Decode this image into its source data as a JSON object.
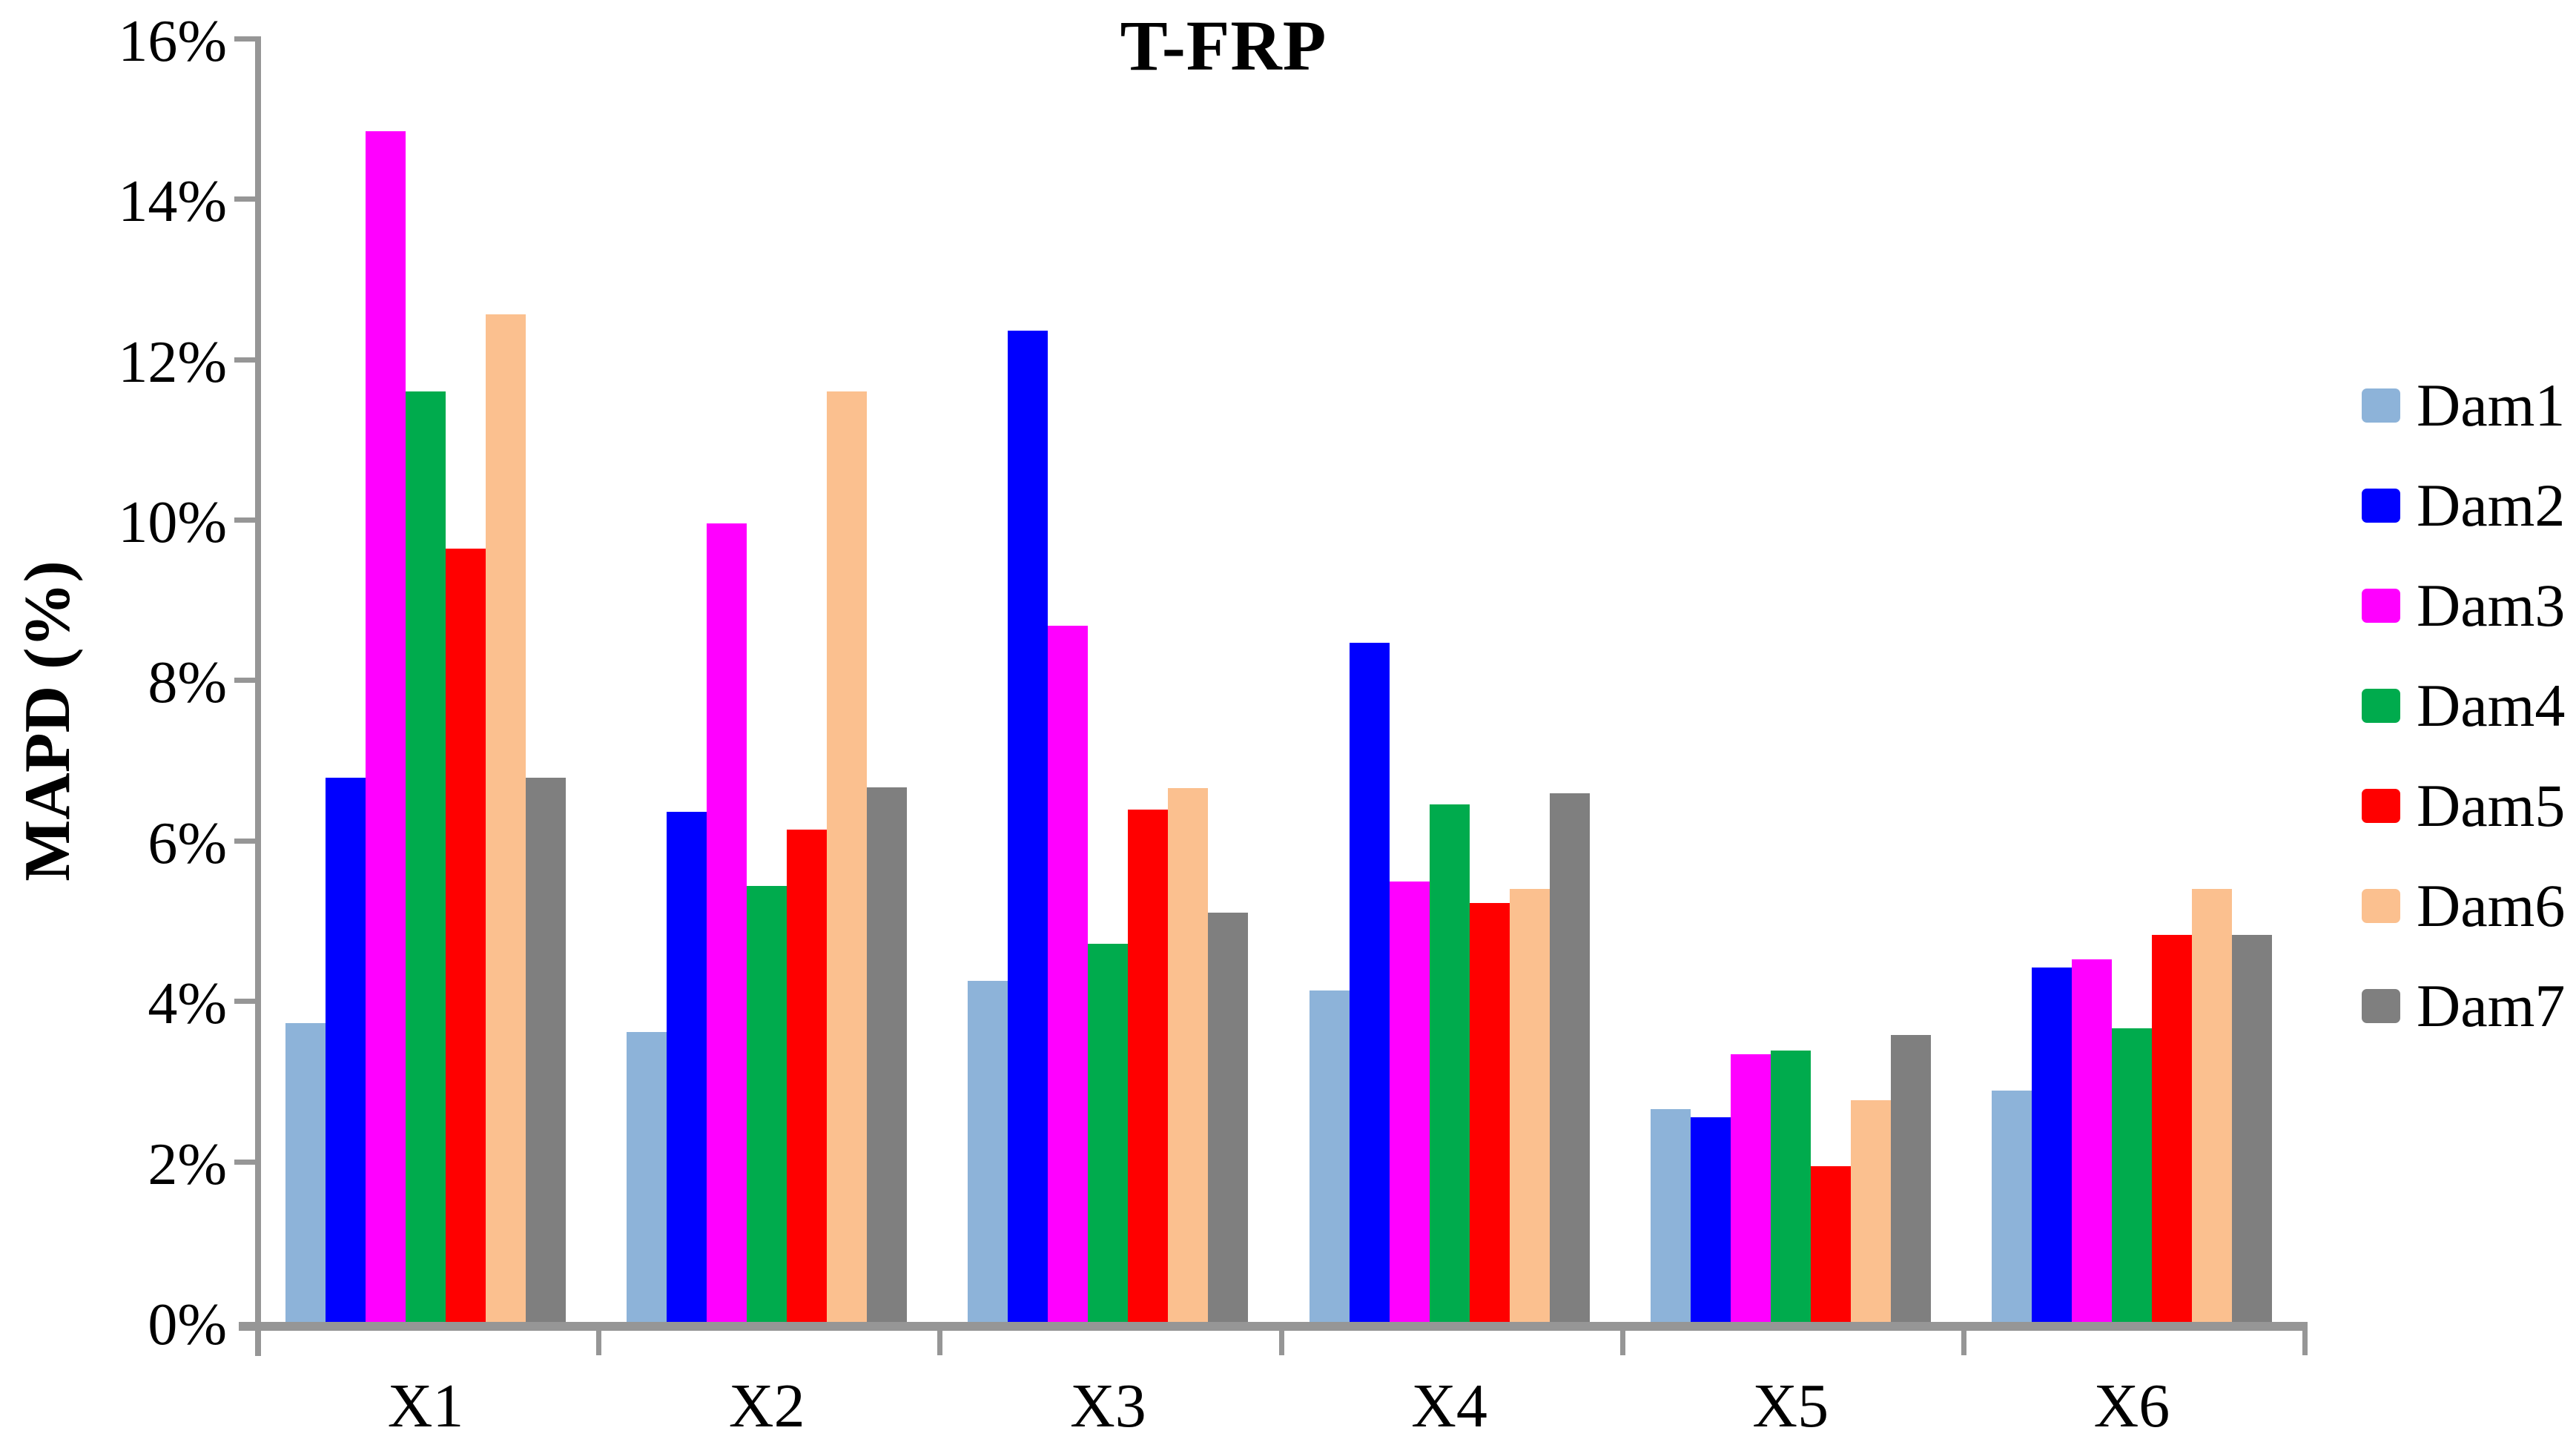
{
  "title": "T-FRP",
  "y_axis": {
    "label": "MAPD (%)",
    "tick_labels": [
      "0%",
      "2%",
      "4%",
      "6%",
      "8%",
      "10%",
      "12%",
      "14%",
      "16%"
    ],
    "min": 0,
    "max": 16
  },
  "x_axis": {
    "categories": [
      "X1",
      "X2",
      "X3",
      "X4",
      "X5",
      "X6"
    ]
  },
  "legend": {
    "position": "right",
    "entries": [
      "Dam1",
      "Dam2",
      "Dam3",
      "Dam4",
      "Dam5",
      "Dam6",
      "Dam7"
    ]
  },
  "colors": {
    "axis": "#969696",
    "dam1": "#8DB3D9",
    "dam2": "#0000FF",
    "dam3": "#FF00FF",
    "dam4": "#00AB4D",
    "dam5": "#FF0000",
    "dam6": "#FBC08F",
    "dam7": "#7F7F7F"
  },
  "chart_data": {
    "type": "bar",
    "title": "T-FRP",
    "xlabel": "",
    "ylabel": "MAPD (%)",
    "ylim": [
      0,
      16
    ],
    "grid": false,
    "legend_position": "right",
    "categories": [
      "X1",
      "X2",
      "X3",
      "X4",
      "X5",
      "X6"
    ],
    "series": [
      {
        "name": "Dam1",
        "color": "#8DB3D9",
        "values": [
          3.72,
          3.61,
          4.25,
          4.13,
          2.65,
          2.88
        ]
      },
      {
        "name": "Dam2",
        "color": "#0000FF",
        "values": [
          6.78,
          6.36,
          12.36,
          8.47,
          2.55,
          4.42
        ]
      },
      {
        "name": "Dam3",
        "color": "#FF00FF",
        "values": [
          14.84,
          9.95,
          8.68,
          5.49,
          3.34,
          4.52
        ]
      },
      {
        "name": "Dam4",
        "color": "#00AB4D",
        "values": [
          11.6,
          5.43,
          4.71,
          6.45,
          3.38,
          3.66
        ]
      },
      {
        "name": "Dam5",
        "color": "#FF0000",
        "values": [
          9.64,
          6.14,
          6.39,
          5.22,
          1.94,
          4.82
        ]
      },
      {
        "name": "Dam6",
        "color": "#FBC08F",
        "values": [
          12.56,
          11.6,
          6.65,
          5.4,
          2.76,
          5.4
        ]
      },
      {
        "name": "Dam7",
        "color": "#7F7F7F",
        "values": [
          6.78,
          6.66,
          5.1,
          6.59,
          3.58,
          4.82
        ]
      }
    ]
  }
}
